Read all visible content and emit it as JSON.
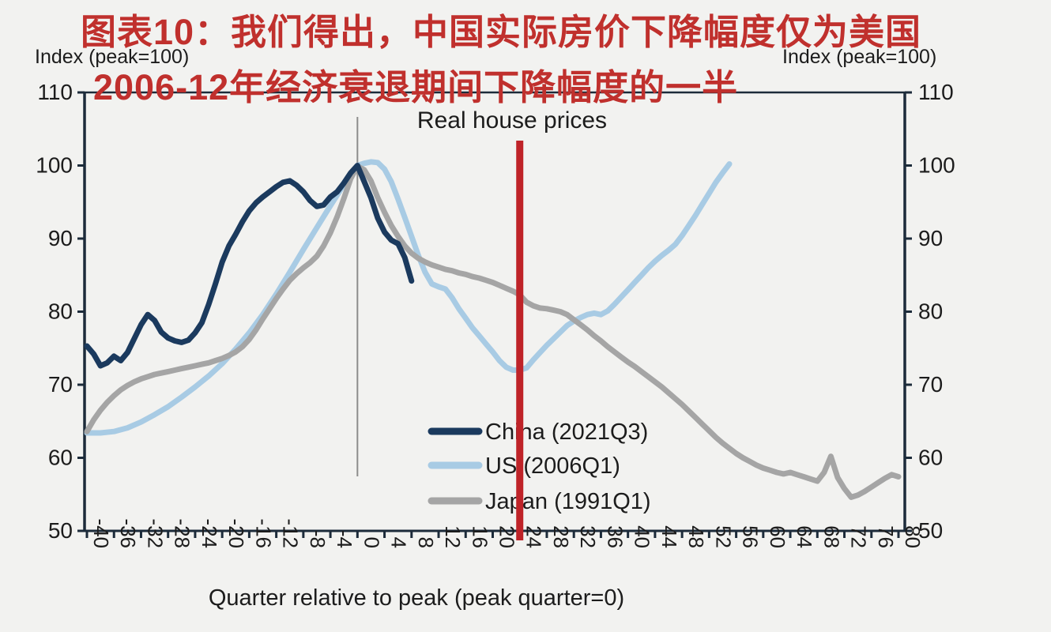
{
  "title": {
    "line1": "图表10：我们得出，中国实际房价下降幅度仅为美国",
    "line2": "2006-12年经济衰退期间下降幅度的一半"
  },
  "axis_titles": {
    "left": "Index (peak=100)",
    "right": "Index (peak=100)"
  },
  "colors": {
    "title_red": "#c0302d",
    "marker_red": "#bf2328",
    "axis_dark": "#1c2b3a",
    "text_dark": "#1c1c1c",
    "peak_line_gray": "#8c8c8c",
    "background": "#f2f2f0"
  },
  "chart_data": {
    "type": "line",
    "title": "Real house prices",
    "xlabel": "Quarter relative to peak (peak quarter=0)",
    "ylabel": "Index (peak=100)",
    "xlim": [
      -40,
      80
    ],
    "ylim": [
      50,
      110
    ],
    "x_ticks": [
      -40,
      -36,
      -32,
      -28,
      -24,
      -20,
      -16,
      -12,
      -8,
      -4,
      0,
      4,
      8,
      12,
      16,
      20,
      24,
      28,
      32,
      36,
      40,
      44,
      48,
      52,
      56,
      60,
      64,
      68,
      72,
      76,
      80
    ],
    "y_ticks": [
      50,
      60,
      70,
      80,
      90,
      100,
      110
    ],
    "grid": false,
    "legend_position": "inside-bottom-center",
    "annotations": {
      "peak_vline_quarter": 0,
      "red_vline_quarter": 24
    },
    "series": [
      {
        "name": "US (2006Q1)",
        "color": "#a8cbe4",
        "points": [
          [
            -40,
            63.4
          ],
          [
            -38,
            63.4
          ],
          [
            -36,
            63.6
          ],
          [
            -34,
            64.1
          ],
          [
            -32,
            64.9
          ],
          [
            -30,
            65.9
          ],
          [
            -28,
            67.0
          ],
          [
            -26,
            68.3
          ],
          [
            -24,
            69.7
          ],
          [
            -22,
            71.2
          ],
          [
            -20,
            72.9
          ],
          [
            -18,
            74.9
          ],
          [
            -16,
            77.1
          ],
          [
            -14,
            79.6
          ],
          [
            -12,
            82.4
          ],
          [
            -10,
            85.4
          ],
          [
            -8,
            88.5
          ],
          [
            -6,
            91.5
          ],
          [
            -4,
            94.5
          ],
          [
            -2,
            97.4
          ],
          [
            -1,
            98.8
          ],
          [
            0,
            100
          ],
          [
            1,
            100.3
          ],
          [
            2,
            100.5
          ],
          [
            3,
            100.4
          ],
          [
            4,
            99.5
          ],
          [
            5,
            97.8
          ],
          [
            6,
            95.4
          ],
          [
            7,
            92.9
          ],
          [
            8,
            90.3
          ],
          [
            9,
            87.7
          ],
          [
            10,
            85.4
          ],
          [
            11,
            83.8
          ],
          [
            12,
            83.4
          ],
          [
            13,
            83.1
          ],
          [
            14,
            81.9
          ],
          [
            15,
            80.4
          ],
          [
            16,
            79.1
          ],
          [
            17,
            77.8
          ],
          [
            18,
            76.7
          ],
          [
            19,
            75.6
          ],
          [
            20,
            74.5
          ],
          [
            21,
            73.3
          ],
          [
            22,
            72.4
          ],
          [
            23,
            72.0
          ],
          [
            24,
            72.0
          ],
          [
            25,
            72.3
          ],
          [
            26,
            73.4
          ],
          [
            27,
            74.4
          ],
          [
            28,
            75.4
          ],
          [
            29,
            76.3
          ],
          [
            30,
            77.2
          ],
          [
            31,
            78.1
          ],
          [
            32,
            78.7
          ],
          [
            33,
            79.2
          ],
          [
            34,
            79.6
          ],
          [
            35,
            79.8
          ],
          [
            36,
            79.6
          ],
          [
            37,
            80.1
          ],
          [
            38,
            81.0
          ],
          [
            39,
            82.0
          ],
          [
            40,
            83.0
          ],
          [
            41,
            84.0
          ],
          [
            42,
            85.0
          ],
          [
            43,
            86.0
          ],
          [
            44,
            86.9
          ],
          [
            45,
            87.7
          ],
          [
            46,
            88.4
          ],
          [
            47,
            89.2
          ],
          [
            48,
            90.4
          ],
          [
            49,
            91.8
          ],
          [
            50,
            93.2
          ],
          [
            51,
            94.7
          ],
          [
            52,
            96.2
          ],
          [
            53,
            97.7
          ],
          [
            54,
            99.0
          ],
          [
            55,
            100.2
          ]
        ]
      },
      {
        "name": "Japan (1991Q1)",
        "color": "#a5a5a5",
        "points": [
          [
            -40,
            63.6
          ],
          [
            -39,
            65.2
          ],
          [
            -38,
            66.5
          ],
          [
            -37,
            67.6
          ],
          [
            -36,
            68.5
          ],
          [
            -35,
            69.3
          ],
          [
            -34,
            69.9
          ],
          [
            -33,
            70.4
          ],
          [
            -32,
            70.8
          ],
          [
            -31,
            71.1
          ],
          [
            -30,
            71.4
          ],
          [
            -29,
            71.6
          ],
          [
            -28,
            71.8
          ],
          [
            -27,
            72.0
          ],
          [
            -26,
            72.2
          ],
          [
            -25,
            72.4
          ],
          [
            -24,
            72.6
          ],
          [
            -23,
            72.8
          ],
          [
            -22,
            73.0
          ],
          [
            -21,
            73.3
          ],
          [
            -20,
            73.6
          ],
          [
            -19,
            74.0
          ],
          [
            -18,
            74.5
          ],
          [
            -17,
            75.2
          ],
          [
            -16,
            76.2
          ],
          [
            -15,
            77.5
          ],
          [
            -14,
            79.0
          ],
          [
            -13,
            80.4
          ],
          [
            -12,
            81.8
          ],
          [
            -11,
            83.1
          ],
          [
            -10,
            84.3
          ],
          [
            -9,
            85.2
          ],
          [
            -8,
            86.0
          ],
          [
            -7,
            86.7
          ],
          [
            -6,
            87.6
          ],
          [
            -5,
            89.0
          ],
          [
            -4,
            90.8
          ],
          [
            -3,
            93.0
          ],
          [
            -2,
            95.5
          ],
          [
            -1,
            98.2
          ],
          [
            0,
            99.9
          ],
          [
            1,
            99.4
          ],
          [
            2,
            97.9
          ],
          [
            3,
            95.6
          ],
          [
            4,
            93.6
          ],
          [
            5,
            91.8
          ],
          [
            6,
            90.3
          ],
          [
            7,
            89.0
          ],
          [
            8,
            88.0
          ],
          [
            9,
            87.3
          ],
          [
            10,
            86.8
          ],
          [
            11,
            86.4
          ],
          [
            12,
            86.1
          ],
          [
            13,
            85.8
          ],
          [
            14,
            85.6
          ],
          [
            15,
            85.3
          ],
          [
            16,
            85.1
          ],
          [
            17,
            84.8
          ],
          [
            18,
            84.6
          ],
          [
            19,
            84.3
          ],
          [
            20,
            84.0
          ],
          [
            21,
            83.6
          ],
          [
            22,
            83.2
          ],
          [
            23,
            82.8
          ],
          [
            24,
            82.3
          ],
          [
            25,
            81.3
          ],
          [
            26,
            80.8
          ],
          [
            27,
            80.5
          ],
          [
            28,
            80.4
          ],
          [
            29,
            80.2
          ],
          [
            30,
            80.0
          ],
          [
            31,
            79.6
          ],
          [
            32,
            78.9
          ],
          [
            33,
            78.2
          ],
          [
            34,
            77.5
          ],
          [
            35,
            76.7
          ],
          [
            36,
            76.0
          ],
          [
            37,
            75.2
          ],
          [
            38,
            74.5
          ],
          [
            39,
            73.8
          ],
          [
            40,
            73.1
          ],
          [
            41,
            72.5
          ],
          [
            42,
            71.8
          ],
          [
            43,
            71.1
          ],
          [
            44,
            70.4
          ],
          [
            45,
            69.7
          ],
          [
            46,
            68.9
          ],
          [
            47,
            68.1
          ],
          [
            48,
            67.3
          ],
          [
            49,
            66.4
          ],
          [
            50,
            65.5
          ],
          [
            51,
            64.6
          ],
          [
            52,
            63.7
          ],
          [
            53,
            62.8
          ],
          [
            54,
            62.0
          ],
          [
            55,
            61.3
          ],
          [
            56,
            60.6
          ],
          [
            57,
            60.0
          ],
          [
            58,
            59.5
          ],
          [
            59,
            59.0
          ],
          [
            60,
            58.6
          ],
          [
            61,
            58.3
          ],
          [
            62,
            58.0
          ],
          [
            63,
            57.8
          ],
          [
            64,
            58.0
          ],
          [
            65,
            57.7
          ],
          [
            66,
            57.4
          ],
          [
            67,
            57.1
          ],
          [
            68,
            56.8
          ],
          [
            69,
            58.0
          ],
          [
            70,
            60.2
          ],
          [
            71,
            57.3
          ],
          [
            72,
            55.8
          ],
          [
            73,
            54.6
          ],
          [
            74,
            54.9
          ],
          [
            75,
            55.4
          ],
          [
            76,
            56.0
          ],
          [
            77,
            56.6
          ],
          [
            78,
            57.2
          ],
          [
            79,
            57.7
          ],
          [
            80,
            57.4
          ]
        ]
      },
      {
        "name": "China (2021Q3)",
        "color": "#1b3a5e",
        "points": [
          [
            -40,
            75.3
          ],
          [
            -39,
            74.2
          ],
          [
            -38,
            72.6
          ],
          [
            -37,
            73.0
          ],
          [
            -36,
            73.9
          ],
          [
            -35,
            73.3
          ],
          [
            -34,
            74.4
          ],
          [
            -33,
            76.3
          ],
          [
            -32,
            78.2
          ],
          [
            -31,
            79.6
          ],
          [
            -30,
            78.8
          ],
          [
            -29,
            77.2
          ],
          [
            -28,
            76.4
          ],
          [
            -27,
            76.0
          ],
          [
            -26,
            75.8
          ],
          [
            -25,
            76.1
          ],
          [
            -24,
            77.1
          ],
          [
            -23,
            78.5
          ],
          [
            -22,
            81.0
          ],
          [
            -21,
            83.8
          ],
          [
            -20,
            86.8
          ],
          [
            -19,
            89.0
          ],
          [
            -18,
            90.6
          ],
          [
            -17,
            92.3
          ],
          [
            -16,
            93.8
          ],
          [
            -15,
            94.9
          ],
          [
            -14,
            95.7
          ],
          [
            -13,
            96.4
          ],
          [
            -12,
            97.1
          ],
          [
            -11,
            97.7
          ],
          [
            -10,
            97.9
          ],
          [
            -9,
            97.3
          ],
          [
            -8,
            96.4
          ],
          [
            -7,
            95.2
          ],
          [
            -6,
            94.4
          ],
          [
            -5,
            94.6
          ],
          [
            -4,
            95.7
          ],
          [
            -3,
            96.4
          ],
          [
            -2,
            97.6
          ],
          [
            -1,
            99.0
          ],
          [
            0,
            100
          ],
          [
            1,
            97.8
          ],
          [
            2,
            95.6
          ],
          [
            3,
            92.8
          ],
          [
            4,
            90.9
          ],
          [
            5,
            89.8
          ],
          [
            6,
            89.3
          ],
          [
            7,
            87.4
          ],
          [
            8,
            84.2
          ]
        ]
      }
    ]
  },
  "legend": {
    "entries": [
      "China (2021Q3)",
      "US (2006Q1)",
      "Japan (1991Q1)"
    ],
    "colors": [
      "#1b3a5e",
      "#a8cbe4",
      "#a5a5a5"
    ]
  }
}
